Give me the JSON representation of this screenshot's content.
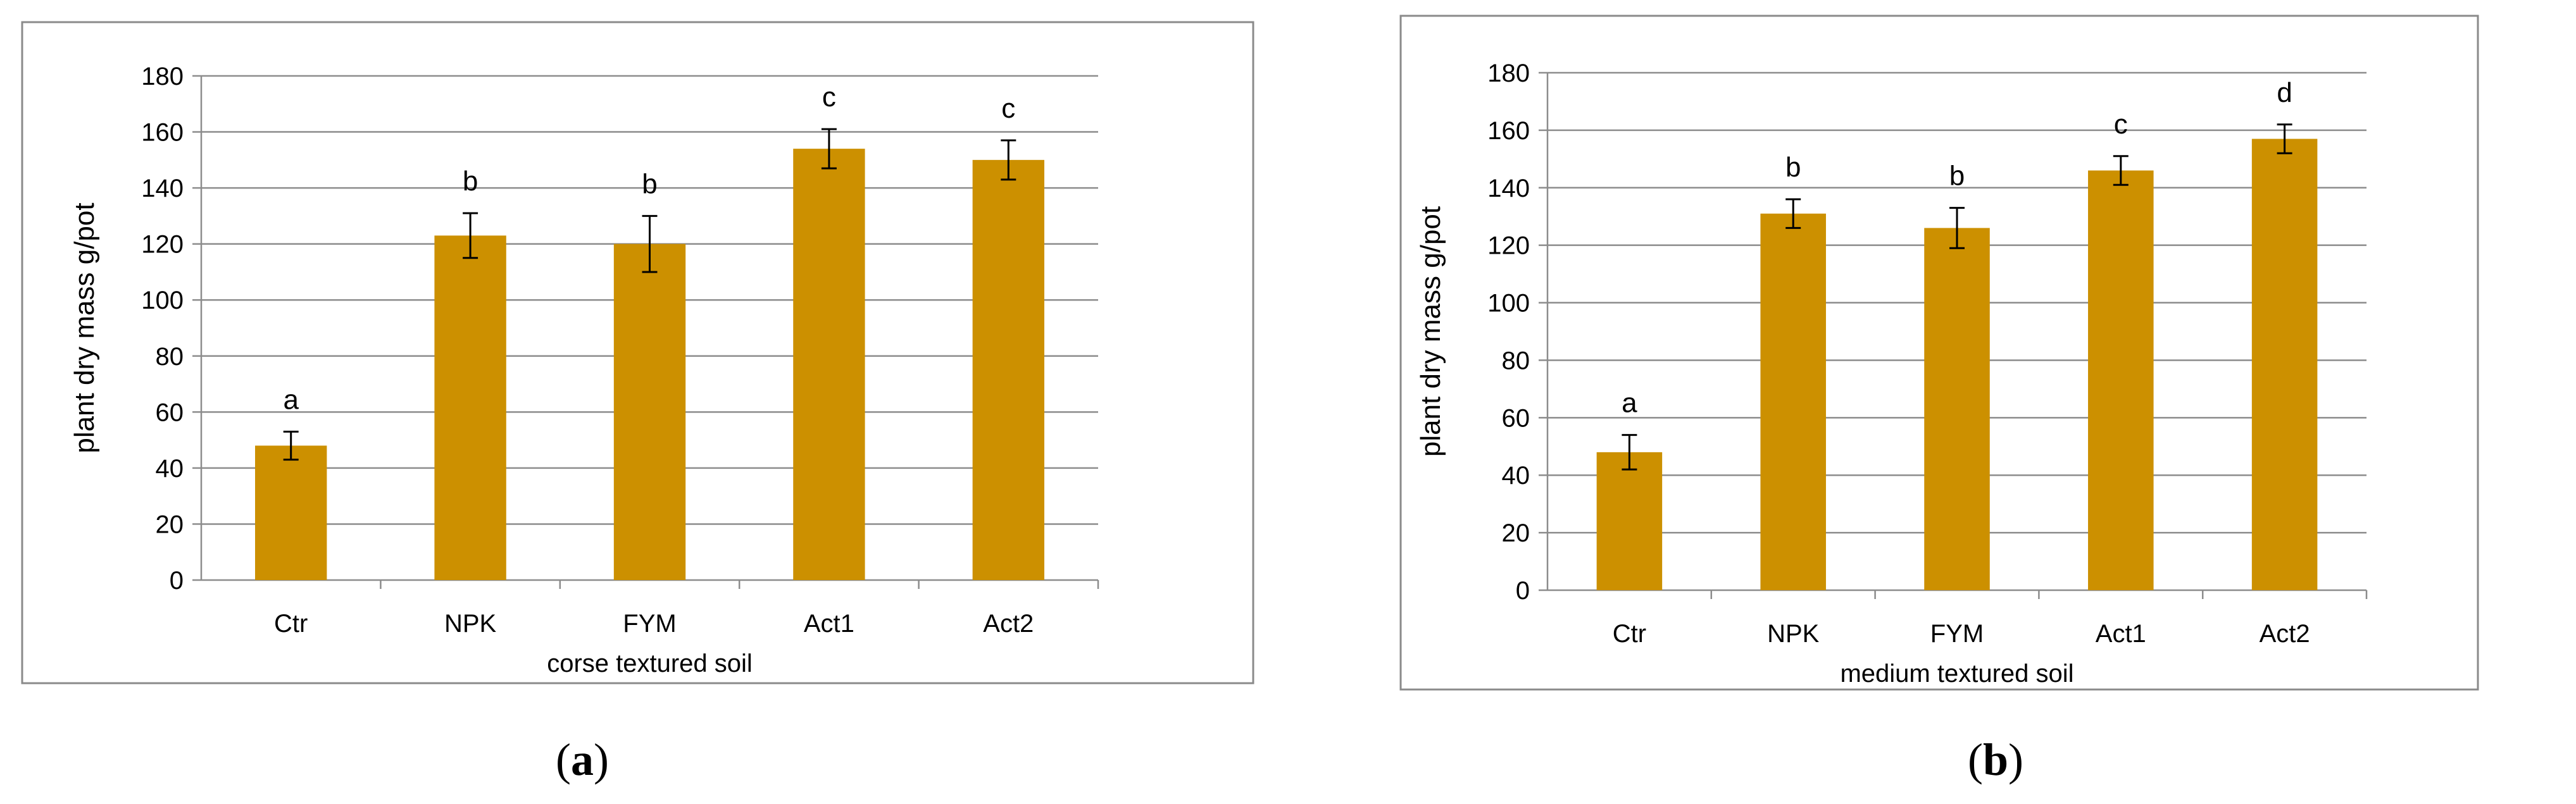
{
  "chart_data": [
    {
      "type": "bar",
      "panel": "a",
      "caption_letter": "a",
      "categories": [
        "Ctr",
        "NPK",
        "FYM",
        "Act1",
        "Act2"
      ],
      "values": [
        48,
        123,
        120,
        154,
        150
      ],
      "errors": [
        5,
        8,
        10,
        7,
        7
      ],
      "letters": [
        "a",
        "b",
        "b",
        "c",
        "c"
      ],
      "xlabel": "corse textured soil",
      "ylabel": "plant dry mass g/pot",
      "ylim": [
        0,
        180
      ],
      "yticks": [
        "0",
        "20",
        "40",
        "60",
        "80",
        "100",
        "120",
        "140",
        "160",
        "180"
      ],
      "bar_color": "#CC9000",
      "grid": true,
      "legend": "none"
    },
    {
      "type": "bar",
      "panel": "b",
      "caption_letter": "b",
      "categories": [
        "Ctr",
        "NPK",
        "FYM",
        "Act1",
        "Act2"
      ],
      "values": [
        48,
        131,
        126,
        146,
        157
      ],
      "errors": [
        6,
        5,
        7,
        5,
        5
      ],
      "letters": [
        "a",
        "b",
        "b",
        "c",
        "d"
      ],
      "xlabel": "medium  textured soil",
      "ylabel": "plant dry mass g/pot",
      "ylim": [
        0,
        180
      ],
      "yticks": [
        "0",
        "20",
        "40",
        "60",
        "80",
        "100",
        "120",
        "140",
        "160",
        "180"
      ],
      "bar_color": "#CC9000",
      "grid": true,
      "legend": "none"
    }
  ]
}
